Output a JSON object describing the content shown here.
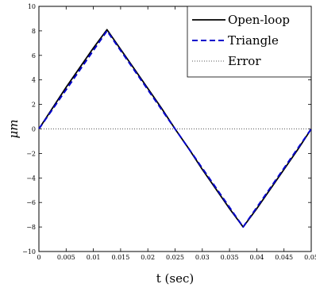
{
  "chart_data": {
    "type": "line",
    "xlabel": "t (sec)",
    "ylabel": "μm",
    "xlim": [
      0,
      0.05
    ],
    "ylim": [
      -10,
      10
    ],
    "x_ticks": [
      0,
      0.005,
      0.01,
      0.015,
      0.02,
      0.025,
      0.03,
      0.035,
      0.04,
      0.045,
      0.05
    ],
    "x_tick_labels": [
      "0",
      "0.005",
      "0.01",
      "0.015",
      "0.02",
      "0.025",
      "0.03",
      "0.035",
      "0.04",
      "0.045",
      "0.05"
    ],
    "y_ticks": [
      -10,
      -8,
      -6,
      -4,
      -2,
      0,
      2,
      4,
      6,
      8,
      10
    ],
    "y_tick_labels": [
      "−10",
      "−8",
      "−6",
      "−4",
      "−2",
      "0",
      "2",
      "4",
      "6",
      "8",
      "10"
    ],
    "grid": false,
    "legend_position": "top-right",
    "series": [
      {
        "name": "Open-loop",
        "color": "#000000",
        "style": "solid",
        "x": [
          0,
          0.0025,
          0.005,
          0.0075,
          0.01,
          0.0125,
          0.015,
          0.0175,
          0.02,
          0.0225,
          0.025,
          0.0275,
          0.03,
          0.0325,
          0.035,
          0.0375,
          0.04,
          0.0425,
          0.045,
          0.0475,
          0.05
        ],
        "y": [
          0,
          1.7,
          3.4,
          5.0,
          6.6,
          8.1,
          6.5,
          4.9,
          3.3,
          1.7,
          0.0,
          -1.6,
          -3.3,
          -4.9,
          -6.5,
          -8.0,
          -6.5,
          -4.9,
          -3.3,
          -1.7,
          0.0
        ]
      },
      {
        "name": "Triangle",
        "color": "#0000cc",
        "style": "dashed",
        "x": [
          0,
          0.0125,
          0.0375,
          0.05
        ],
        "y": [
          0,
          8,
          -8,
          0
        ]
      },
      {
        "name": "Error",
        "color": "#555555",
        "style": "dotted",
        "x": [
          0,
          0.005,
          0.01,
          0.015,
          0.02,
          0.025,
          0.03,
          0.035,
          0.04,
          0.045,
          0.05
        ],
        "y": [
          0,
          0,
          0,
          0,
          0,
          0,
          0,
          0,
          0,
          0,
          0
        ]
      }
    ]
  }
}
